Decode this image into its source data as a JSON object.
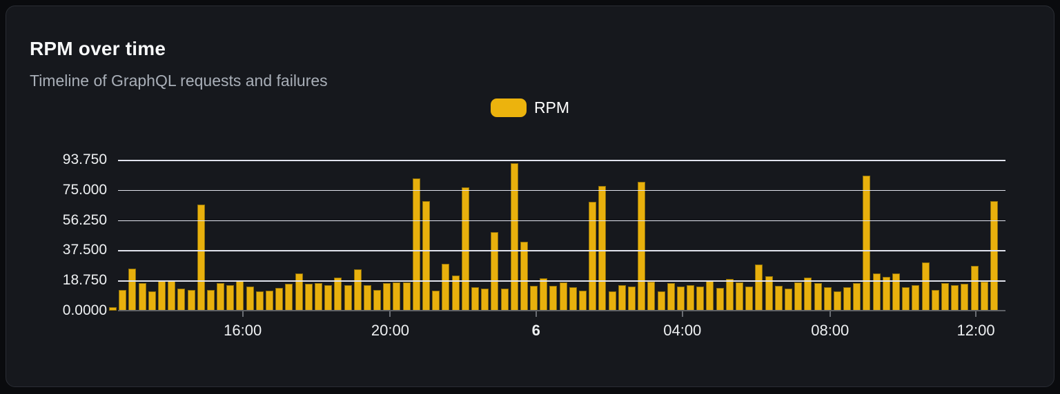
{
  "card": {
    "title": "RPM over time",
    "subtitle": "Timeline of GraphQL requests and failures"
  },
  "legend": {
    "label": "RPM",
    "swatch_color": "#ecb30d"
  },
  "chart_data": {
    "type": "bar",
    "title": "RPM over time",
    "subtitle": "Timeline of GraphQL requests and failures",
    "series_name": "RPM",
    "ylabel": "",
    "xlabel": "",
    "ylim": [
      0,
      93.75
    ],
    "grid": true,
    "legend_position": "top-center",
    "bar_color": "#e8b00d",
    "bar_border_color": "#8f7009",
    "gridline_color": "#e2e4ee",
    "axis_line_color": "#5e6167",
    "y_ticks": [
      "93.750",
      "75.000",
      "56.250",
      "37.500",
      "18.750",
      "0.0000"
    ],
    "x_ticks": [
      {
        "label": "16:00",
        "pos": 0.1405,
        "bold": false
      },
      {
        "label": "20:00",
        "pos": 0.3067,
        "bold": false
      },
      {
        "label": "6",
        "pos": 0.471,
        "bold": true
      },
      {
        "label": "04:00",
        "pos": 0.6359,
        "bold": false
      },
      {
        "label": "08:00",
        "pos": 0.8023,
        "bold": false
      },
      {
        "label": "12:00",
        "pos": 0.9666,
        "bold": false
      }
    ],
    "values": [
      2,
      13,
      26,
      17,
      12,
      18.5,
      18.5,
      13.5,
      13,
      66,
      13,
      17,
      16,
      18.5,
      15,
      12,
      12.5,
      14,
      16.5,
      23,
      16.5,
      17,
      16,
      20.5,
      16,
      25.5,
      16,
      13,
      17,
      17.5,
      17.5,
      82,
      68,
      12.5,
      29,
      22,
      76.5,
      14.5,
      13.5,
      49,
      13.5,
      91.5,
      43,
      15.5,
      20,
      15.5,
      17.5,
      14.5,
      12.5,
      67.5,
      77.5,
      12,
      16,
      15,
      80,
      18,
      12,
      17,
      15,
      16,
      15,
      18.5,
      14,
      19.5,
      17.5,
      15,
      28.5,
      21.5,
      15.5,
      13.5,
      17.5,
      20.5,
      17,
      14.5,
      12,
      14.5,
      17,
      84,
      23,
      21,
      23,
      14.5,
      16,
      30,
      13,
      17,
      16,
      16.5,
      28,
      18,
      68
    ]
  }
}
